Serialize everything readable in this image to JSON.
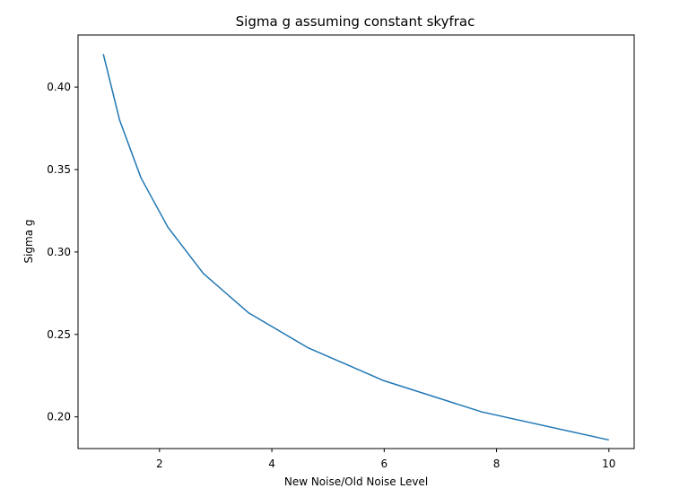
{
  "chart_data": {
    "type": "line",
    "title": "Sigma g assuming constant skyfrac",
    "xlabel": "New Noise/Old Noise Level",
    "ylabel": "Sigma g",
    "xlim": [
      0.55,
      10.45
    ],
    "ylim": [
      0.1808,
      0.4316
    ],
    "x_ticks": [
      2,
      4,
      6,
      8,
      10
    ],
    "x_tick_labels": [
      "2",
      "4",
      "6",
      "8",
      "10"
    ],
    "y_ticks": [
      0.2,
      0.25,
      0.3,
      0.35,
      0.4
    ],
    "y_tick_labels": [
      "0.20",
      "0.25",
      "0.30",
      "0.35",
      "0.40"
    ],
    "grid": false,
    "series": [
      {
        "color": "#1f77b4",
        "x": [
          1.0,
          1.29,
          1.67,
          2.15,
          2.78,
          3.59,
          4.64,
          5.99,
          7.74,
          10.0
        ],
        "y": [
          0.42,
          0.38,
          0.345,
          0.315,
          0.287,
          0.263,
          0.242,
          0.222,
          0.203,
          0.186
        ]
      }
    ]
  }
}
